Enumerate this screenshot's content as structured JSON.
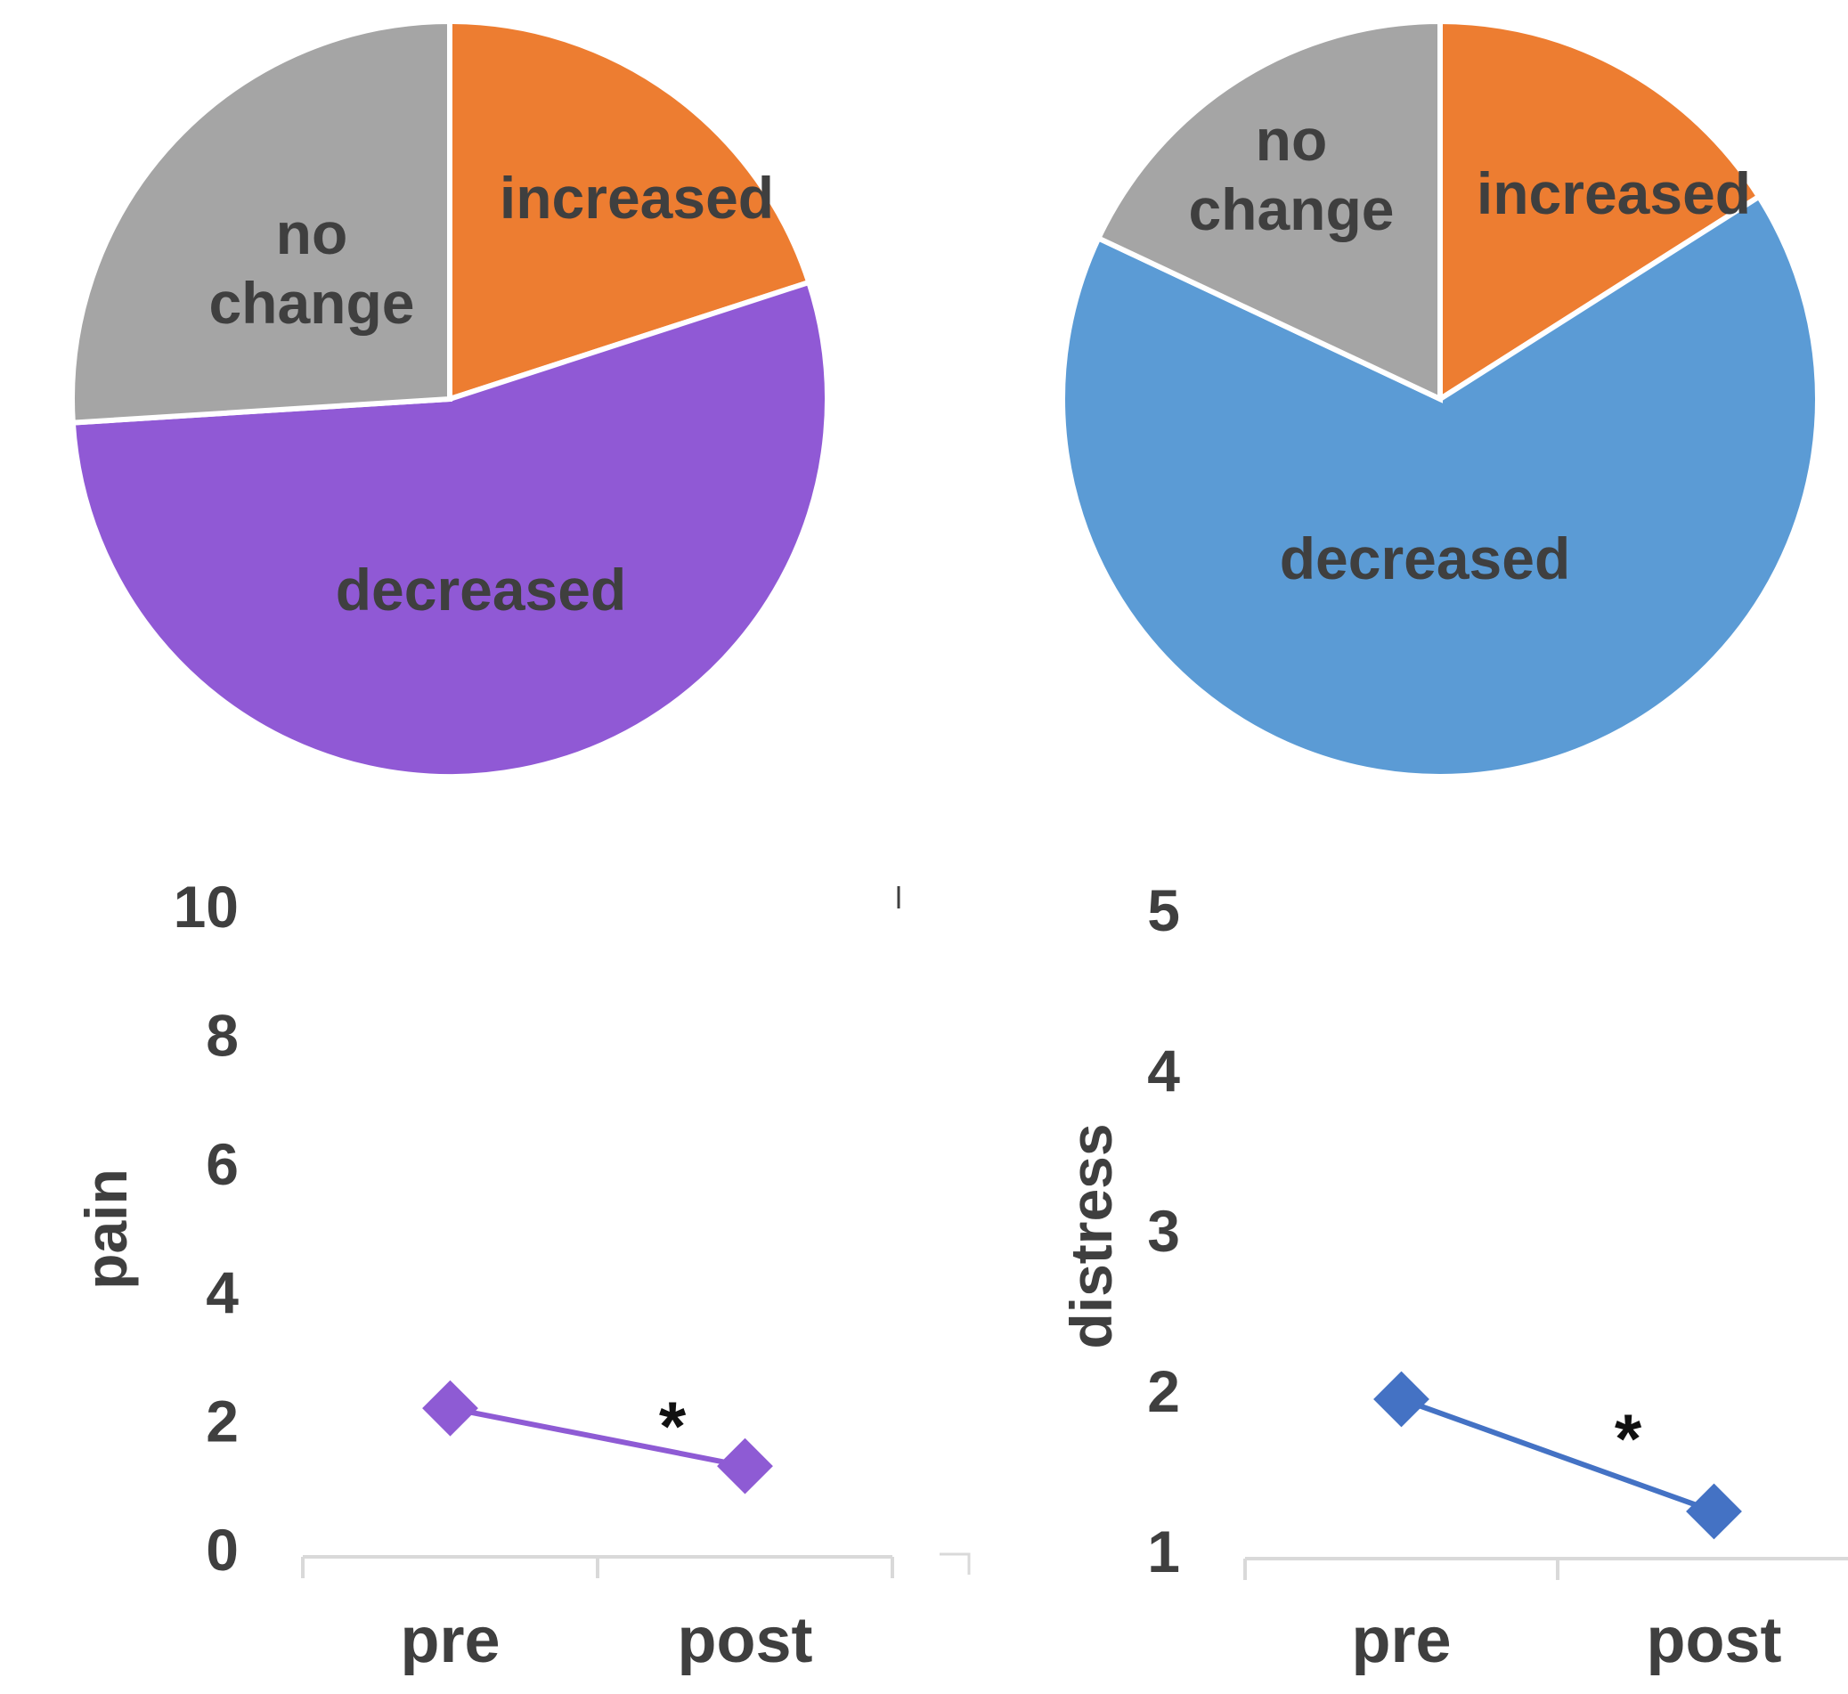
{
  "colors": {
    "increased": "#ed7d31",
    "no_change": "#a5a5a5",
    "decreased_pain": "#9059d5",
    "decreased_distress": "#5b9bd5",
    "pain_line": "#8e5bd4",
    "distress_line": "#4472c4",
    "axis": "#d9d9d9",
    "text": "#3f3f3f"
  },
  "chart_data": [
    {
      "type": "pie",
      "slices": [
        {
          "label": "increased",
          "value": 20,
          "color_key": "increased"
        },
        {
          "label": "decreased",
          "value": 54,
          "color_key": "decreased_pain"
        },
        {
          "label": "no change",
          "value": 26,
          "color_key": "no_change"
        }
      ]
    },
    {
      "type": "pie",
      "slices": [
        {
          "label": "increased",
          "value": 16,
          "color_key": "increased"
        },
        {
          "label": "decreased",
          "value": 66,
          "color_key": "decreased_distress"
        },
        {
          "label": "no change",
          "value": 18,
          "color_key": "no_change"
        }
      ]
    },
    {
      "type": "line",
      "categories": [
        "pre",
        "post"
      ],
      "values": [
        2.2,
        1.3
      ],
      "ylabel": "pain",
      "ylim": [
        0,
        10
      ],
      "yticks": [
        "0",
        "2",
        "4",
        "6",
        "8",
        "10"
      ],
      "annotation": "*",
      "color_key": "pain_line",
      "grid": false
    },
    {
      "type": "line",
      "categories": [
        "pre",
        "post"
      ],
      "values": [
        1.95,
        1.25
      ],
      "ylabel": "distress",
      "ylim": [
        1,
        5
      ],
      "yticks": [
        "1",
        "2",
        "3",
        "4",
        "5"
      ],
      "annotation": "*",
      "color_key": "distress_line",
      "grid": false
    }
  ]
}
